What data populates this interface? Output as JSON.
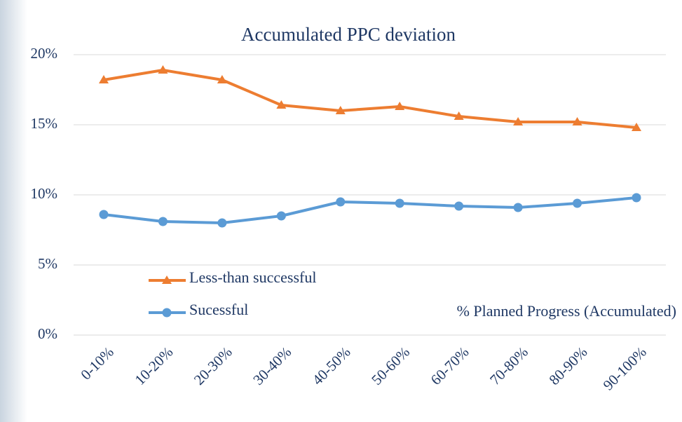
{
  "chart_data": {
    "type": "line",
    "title": "Accumulated PPC deviation",
    "x_label": "% Planned Progress (Accumulated)",
    "categories": [
      "0-10%",
      "10-20%",
      "20-30%",
      "30-40%",
      "40-50%",
      "50-60%",
      "60-70%",
      "70-80%",
      "80-90%",
      "90-100%"
    ],
    "series": [
      {
        "name": "Less-than successful",
        "color": "#ed7d31",
        "marker": "triangle",
        "values": [
          18.2,
          18.9,
          18.2,
          16.4,
          16.0,
          16.3,
          15.6,
          15.2,
          15.2,
          14.8
        ]
      },
      {
        "name": "Sucessful",
        "color": "#5b9bd5",
        "marker": "circle",
        "values": [
          8.6,
          8.1,
          8.0,
          8.5,
          9.5,
          9.4,
          9.2,
          9.1,
          9.4,
          9.8
        ]
      }
    ],
    "ylim": [
      0,
      20
    ],
    "yticks": [
      {
        "value": 0,
        "label": "0%"
      },
      {
        "value": 5,
        "label": "5%"
      },
      {
        "value": 10,
        "label": "10%"
      },
      {
        "value": 15,
        "label": "15%"
      },
      {
        "value": 20,
        "label": "20%"
      }
    ],
    "grid": true,
    "legend": "lower-left"
  }
}
